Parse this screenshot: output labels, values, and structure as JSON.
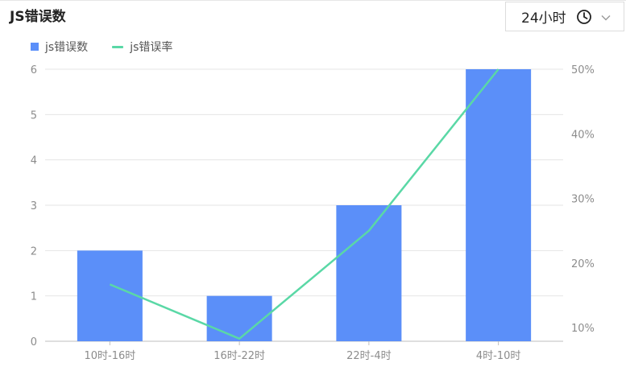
{
  "header": {
    "title": "JS错误数",
    "range_picker": {
      "value": "24小时",
      "clock_icon": "clock-icon",
      "chevron_icon": "chevron-down-icon"
    }
  },
  "chart_data": {
    "type": "bar",
    "categories": [
      "10时-16时",
      "16时-22时",
      "22时-4时",
      "4时-10时"
    ],
    "series": [
      {
        "name": "js错误数",
        "type": "bar",
        "axis": "left",
        "values": [
          2,
          1,
          3,
          6
        ],
        "color": "#5b8ff9"
      },
      {
        "name": "js错误率",
        "type": "line",
        "axis": "right",
        "values": [
          16.7,
          8.3,
          25,
          50
        ],
        "color": "#5ad8a6"
      }
    ],
    "y_left": {
      "ticks": [
        "0",
        "1",
        "2",
        "3",
        "4",
        "5",
        "6"
      ],
      "ylim": [
        0,
        6
      ]
    },
    "y_right": {
      "ticks": [
        "10%",
        "20%",
        "30%",
        "40%",
        "50%"
      ],
      "ylim": [
        7.9,
        50
      ]
    },
    "grid": true,
    "legend": "top-left"
  }
}
